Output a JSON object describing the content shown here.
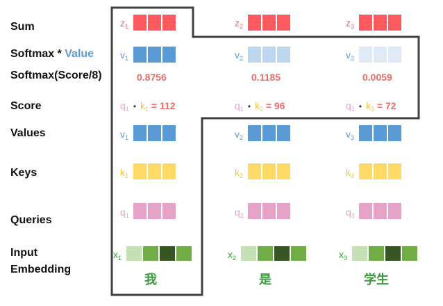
{
  "row_labels": {
    "sum": "Sum",
    "softmax_value_prefix": "Softmax * ",
    "softmax_value_highlight": "Value",
    "softmax_score": "Softmax(Score/8)",
    "score": "Score",
    "values": "Values",
    "keys": "Keys",
    "queries": "Queries",
    "input_line1": "Input",
    "input_line2": "Embedding"
  },
  "tokens": [
    {
      "word": "我",
      "z": {
        "base": "z",
        "sub": "1"
      },
      "v": {
        "base": "v",
        "sub": "1"
      },
      "k": {
        "base": "k",
        "sub": "1"
      },
      "q": {
        "base": "q",
        "sub": "1"
      },
      "x": {
        "base": "x",
        "sub": "1"
      },
      "softmax": "0.8756",
      "score_value": "112"
    },
    {
      "word": "是",
      "z": {
        "base": "z",
        "sub": "2"
      },
      "v": {
        "base": "v",
        "sub": "2"
      },
      "k": {
        "base": "k",
        "sub": "2"
      },
      "q": {
        "base": "q",
        "sub": "1"
      },
      "x": {
        "base": "x",
        "sub": "2"
      },
      "softmax": "0.1185",
      "score_value": "96"
    },
    {
      "word": "学生",
      "z": {
        "base": "z",
        "sub": "3"
      },
      "v": {
        "base": "v",
        "sub": "3"
      },
      "k": {
        "base": "k",
        "sub": "3"
      },
      "q": {
        "base": "q",
        "sub": "1"
      },
      "x": {
        "base": "x",
        "sub": "3"
      },
      "softmax": "0.0059",
      "score_value": "72"
    }
  ],
  "row_q_subs": [
    "1",
    "2",
    "3"
  ],
  "score_dot": "•",
  "score_eq": "=",
  "colors": {
    "z": "#ff5a5f",
    "v": "#5b9bd5",
    "v_faint2": "#bdd7ee",
    "v_faint3": "#deebf7",
    "k": "#ffd966",
    "q": "#e6a3c8",
    "x_light": "#c5e0b4",
    "x_mid": "#70ad47",
    "x_dark": "#375623",
    "outline": "#404040",
    "softmax_text": "#ea6b6b",
    "label_z": "#ea6b6b",
    "label_v": "#5b9bd5",
    "label_k": "#f4c242",
    "label_q": "#e6a3c8",
    "label_x": "#3a9a3a"
  }
}
